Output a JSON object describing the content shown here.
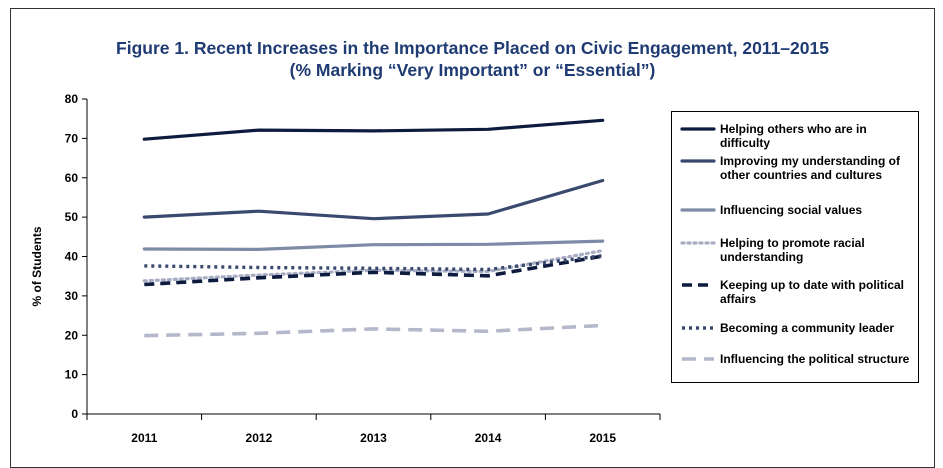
{
  "chart_data": {
    "type": "line",
    "title": "Figure 1. Recent Increases in the Importance Placed on Civic Engagement, 2011–2015",
    "subtitle": "(% Marking “Very Important” or “Essential”)",
    "ylabel": "% of Students",
    "xlabel": "",
    "categories": [
      "2011",
      "2012",
      "2013",
      "2014",
      "2015"
    ],
    "ylim": [
      0,
      80
    ],
    "yticks": [
      "0",
      "10",
      "20",
      "30",
      "40",
      "50",
      "60",
      "70",
      "80"
    ],
    "legend_position": "right",
    "grid": false,
    "series": [
      {
        "name": "Helping others who are in difficulty",
        "values": [
          69.8,
          72.1,
          71.9,
          72.3,
          74.6
        ],
        "color": "#0d1b3e",
        "style": "solid"
      },
      {
        "name": "Improving my understanding of other countries and cultures",
        "values": [
          50.0,
          51.5,
          49.6,
          50.8,
          59.3
        ],
        "color": "#3a4a6e",
        "style": "solid"
      },
      {
        "name": "Influencing social values",
        "values": [
          41.9,
          41.8,
          43.0,
          43.1,
          43.9
        ],
        "color": "#7e8aa6",
        "style": "solid"
      },
      {
        "name": "Helping to promote racial understanding",
        "values": [
          33.8,
          35.3,
          36.5,
          36.2,
          41.5
        ],
        "color": "#a8adc4",
        "style": "dotted"
      },
      {
        "name": "Keeping up to date with political affairs",
        "values": [
          32.9,
          34.6,
          36.0,
          35.1,
          40.1
        ],
        "color": "#0d1b3e",
        "style": "dashed"
      },
      {
        "name": "Becoming a community leader",
        "values": [
          37.6,
          37.2,
          37.0,
          36.7,
          40.2
        ],
        "color": "#3a4a6e",
        "style": "dotted-dense"
      },
      {
        "name": "Influencing the political structure",
        "values": [
          19.9,
          20.5,
          21.6,
          21.0,
          22.5
        ],
        "color": "#b4b8ca",
        "style": "long-dash"
      }
    ]
  }
}
